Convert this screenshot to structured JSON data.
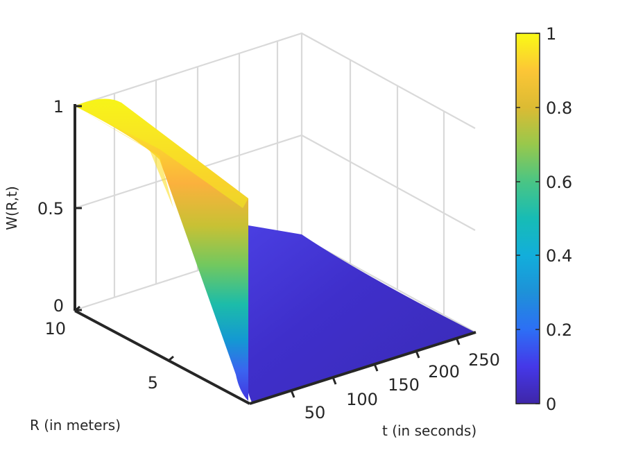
{
  "chart_data": {
    "type": "surface",
    "title": "",
    "xlabel": "t (in seconds)",
    "ylabel": "R (in meters)",
    "zlabel": "W(R,t)",
    "x_ticks": [
      "50",
      "100",
      "150",
      "200",
      "250"
    ],
    "y_ticks": [
      "5",
      "10"
    ],
    "z_ticks": [
      "0",
      "0.5",
      "1"
    ],
    "xlim": [
      0,
      280
    ],
    "ylim": [
      0,
      10
    ],
    "zlim": [
      0,
      1
    ],
    "grid": true,
    "colormap": "parula",
    "colorbar": {
      "ticks": [
        "0",
        "0.2",
        "0.4",
        "0.6",
        "0.8",
        "1"
      ],
      "limits": [
        0,
        1
      ],
      "position": "right"
    },
    "surface_description": {
      "at_t0": "W falls from 1 at R=10 to 0 at R=0",
      "for_t_gt_0": "W near 0.1-0.2, decaying toward 0 as t increases"
    },
    "colors": {
      "low": "#3e26a8",
      "mid": "#17b9bd",
      "high": "#f9fb15"
    }
  }
}
